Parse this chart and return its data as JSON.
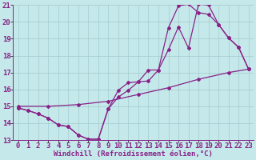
{
  "title": "",
  "xlabel": "Windchill (Refroidissement éolien,°C)",
  "ylabel": "",
  "xlim": [
    -0.5,
    23.5
  ],
  "ylim": [
    13,
    21
  ],
  "yticks": [
    13,
    14,
    15,
    16,
    17,
    18,
    19,
    20,
    21
  ],
  "xticks": [
    0,
    1,
    2,
    3,
    4,
    5,
    6,
    7,
    8,
    9,
    10,
    11,
    12,
    13,
    14,
    15,
    16,
    17,
    18,
    19,
    20,
    21,
    22,
    23
  ],
  "bg_color": "#c5e8ea",
  "grid_color": "#a8cfd2",
  "line_color": "#882288",
  "curves": [
    {
      "x": [
        0,
        1,
        2,
        3,
        4,
        5,
        6,
        7,
        8,
        9,
        10,
        11,
        12,
        13,
        14,
        15,
        16,
        17,
        18,
        19,
        20,
        21,
        22,
        23
      ],
      "y": [
        14.9,
        14.75,
        14.55,
        14.3,
        13.9,
        13.8,
        13.3,
        13.05,
        13.05,
        14.85,
        15.95,
        16.4,
        16.45,
        17.15,
        17.15,
        18.35,
        19.7,
        18.45,
        21.05,
        21.0,
        19.85,
        19.05,
        18.5,
        17.2
      ]
    },
    {
      "x": [
        0,
        3,
        6,
        9,
        12,
        15,
        18,
        21,
        23
      ],
      "y": [
        15.0,
        15.0,
        15.1,
        15.3,
        15.7,
        16.1,
        16.6,
        17.0,
        17.2
      ]
    },
    {
      "x": [
        0,
        1,
        2,
        3,
        4,
        5,
        6,
        7,
        8,
        9,
        10,
        11,
        12,
        13,
        14,
        15,
        16,
        17,
        18,
        19,
        20,
        21,
        22,
        23
      ],
      "y": [
        14.9,
        14.75,
        14.55,
        14.3,
        13.9,
        13.8,
        13.3,
        13.05,
        13.05,
        14.85,
        15.55,
        15.95,
        16.45,
        16.5,
        17.15,
        19.65,
        20.95,
        21.05,
        20.55,
        20.45,
        19.85,
        19.05,
        18.5,
        17.2
      ]
    }
  ],
  "fontsize_xlabel": 6.5,
  "fontsize_ticks": 6.5
}
